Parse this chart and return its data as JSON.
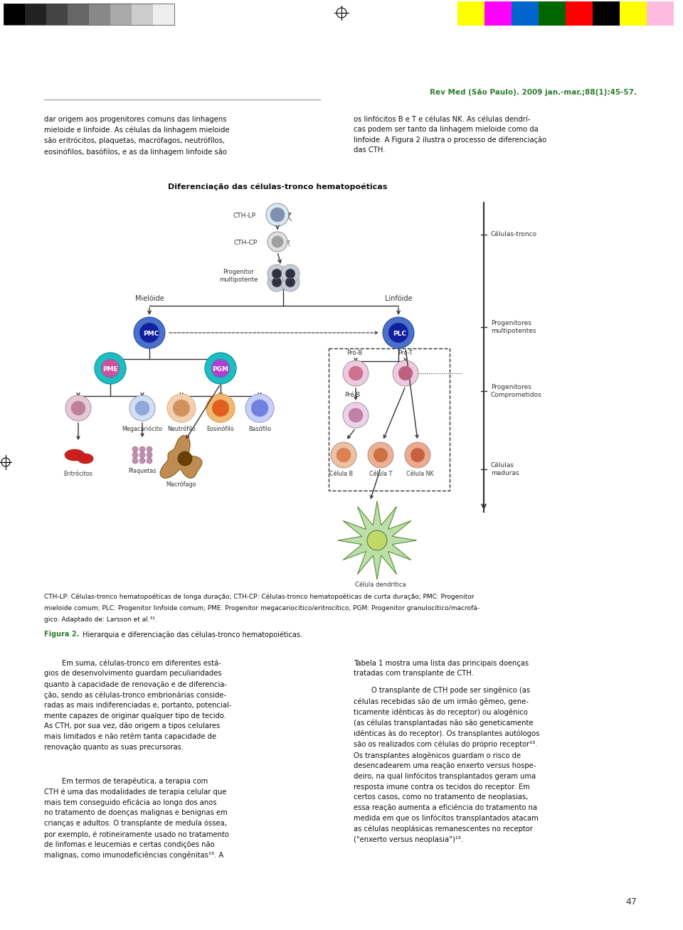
{
  "bg_color": "#ffffff",
  "page_width": 9.6,
  "page_height": 13.08,
  "dpi": 100,
  "header_journal": "Rev Med (São Paulo). 2009 jan.-mar.;88(1):45-57.",
  "header_journal_color": "#2e7d32",
  "text_color": "#111111",
  "text_fontsize": 7.2,
  "green_label_color": "#2e7d32",
  "gray_line_color": "#999999",
  "gray_colors": [
    "#000000",
    "#222222",
    "#444444",
    "#666666",
    "#888888",
    "#aaaaaa",
    "#cccccc",
    "#eeeeee"
  ],
  "cmyk_colors": [
    "#ffff00",
    "#ff00ff",
    "#0066cc",
    "#006600",
    "#ff0000",
    "#000000",
    "#ffff00",
    "#ffbbdd"
  ],
  "col1_para1": "dar origem aos progenitores comuns das linhagens\nmieloide e linfoide. As células da linhagem mieloide\nsão eritrócitos, plaquetas, macrófagos, neutrófílos,\neosinófilos, basófilos, e as da linhagem linfoide são",
  "col2_para1": "os linfócitos B e T e células NK. As células dendrí-\ncas podem ser tanto da linhagem mieloide como da\nlinfoide. A Figura 2 ilustra o processo de diferenciação\ndas CTH.",
  "diagram_title": "Diferenciação das células-tronco hematopoéticas",
  "caption_text1": "CTH-LP: Células-tronco hematopoéticas de longa duração; CTH-CP: Células-tronco hematopoéticas de curta duração; PMC: Progenitor",
  "caption_text2": "mieloide comum; PLC: Progenitor linfoide comum; PME: Progenitor megacariocítico/eritrocítico; PGM: Progenitor granulocítico/macrofá-",
  "caption_text3": "gico. Adaptado de: Larsson et al.³¹.",
  "fig2_label": "Figura 2.",
  "fig2_rest": " Hierarquia e diferenciação das células-tronco hematopoiéticas.",
  "body_col1_p1": "        Em suma, células-tronco em diferentes está-\ngios de desenvolvimento guardam peculiaridades\nquanto à capacidade de renovação e de diferencia-\nção, sendo as células-tronco embrionárias conside-\nradas as mais indiferenciadas e, portanto, potencial-\nmente capazes de originar qualquer tipo de tecido.\nAs CTH, por sua vez, dão origem a tipos celulares\nmais limitados e não retêm tanta capacidade de\nrenovação quanto as suas precursoras.",
  "body_col1_p2": "        Em termos de terapêutica, a terapia com\nCTH é uma das modalidades de terapia celular que\nmais tem conseguido eficácia ao longo dos anos\nno tratamento de doenças malignas e benignas em\ncrianças e adultos. O transplante de medula óssea,\npor exemplo, é rotineiramente usado no tratamento\nde linfomas e leucemias e certas condições não\nmalignas, como imunodeficiências congênitas¹³. A",
  "body_col2_p1": "Tabela 1 mostra uma lista das principais doenças\ntratadas com transplante de CTH.",
  "body_col2_p2": "        O transplante de CTH pode ser singênico (as\ncélulas recebidas são de um irmão gêmeo, gene-\nticamente idênticas às do receptor) ou alogênico\n(as células transplantadas não são geneticamente\nidênticas às do receptor). Os transplantes autólogos\nsão os realizados com células do próprio receptor¹³.\nOs transplantes alogênicos guardam o risco de\ndesencadearem uma reação enxerto versus hospe-\ndeiro, na qual linfócitos transplantados geram uma\nresposta imune contra os tecidos do receptor. Em\ncertos casos, como no tratamento de neoplasias,\nessa reação aumenta a eficiência do tratamento na\nmedida em que os linfócitos transplantados atacam\nas células neoplásicas remanescentes no receptor\n(\"enxerto versus neoplasia\")¹³.",
  "page_num": "47",
  "right_bracket_labels": [
    "Células-tronco",
    "Progenitores\nmultipotentes",
    "Progenitores\nComprometidos",
    "Células\nmaduras"
  ]
}
